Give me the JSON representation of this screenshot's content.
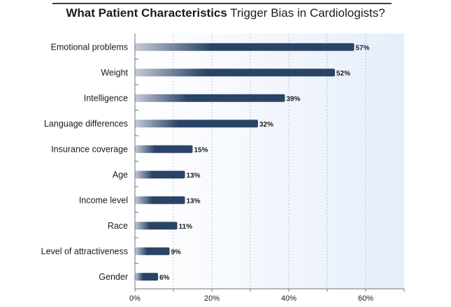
{
  "title_bold": "What Patient Characteristics",
  "title_rest": "Trigger Bias in Cardiologists?",
  "colors": {
    "bar": "#2a4466",
    "bar_light": "#c3cad6",
    "axis": "#6b7380",
    "plot_bg": "#eef3fb",
    "grid": "#aeb6c2"
  },
  "chart_data": {
    "type": "bar",
    "orientation": "horizontal",
    "title": "What Patient Characteristics Trigger Bias in Cardiologists?",
    "categories": [
      "Emotional problems",
      "Weight",
      "Intelligence",
      "Language differences",
      "Insurance coverage",
      "Age",
      "Income level",
      "Race",
      "Level of attractiveness",
      "Gender"
    ],
    "values": [
      57,
      52,
      39,
      32,
      15,
      13,
      13,
      11,
      9,
      6
    ],
    "value_labels": [
      "57%",
      "52%",
      "39%",
      "32%",
      "15%",
      "13%",
      "13%",
      "11%",
      "9%",
      "6%"
    ],
    "xlim": [
      0,
      70
    ],
    "xticks": [
      0,
      20,
      40,
      60
    ],
    "xtick_labels": [
      "0%",
      "20%",
      "40%",
      "60%"
    ],
    "grid": true
  }
}
